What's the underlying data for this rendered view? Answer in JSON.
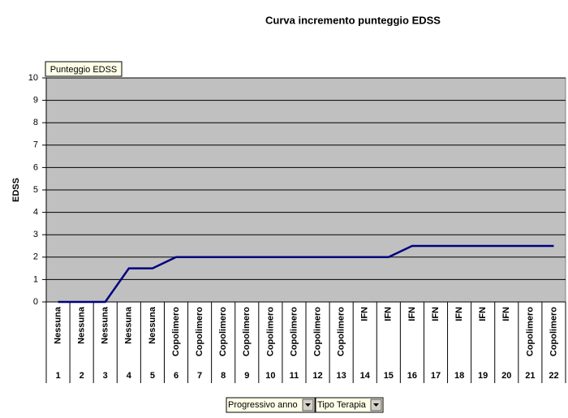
{
  "chart_data": {
    "type": "line",
    "title": "Curva incremento punteggio EDSS",
    "y_label": "EDSS",
    "data_field": "Punteggio EDSS",
    "row_fields": [
      "Progressivo anno",
      "Tipo Terapia"
    ],
    "categories": [
      "1",
      "2",
      "3",
      "4",
      "5",
      "6",
      "7",
      "8",
      "9",
      "10",
      "11",
      "12",
      "13",
      "14",
      "15",
      "16",
      "17",
      "18",
      "19",
      "20",
      "21",
      "22"
    ],
    "category_groups": [
      "Nessuna",
      "Nessuna",
      "Nessuna",
      "Nessuna",
      "Nessuna",
      "Copolimero",
      "Copolimero",
      "Copolimero",
      "Copolimero",
      "Copolimero",
      "Copolimero",
      "Copolimero",
      "Copolimero",
      "IFN",
      "IFN",
      "IFN",
      "IFN",
      "IFN",
      "IFN",
      "IFN",
      "Copolimero",
      "Copolimero"
    ],
    "values": [
      0,
      0,
      0,
      1.5,
      1.5,
      2,
      2,
      2,
      2,
      2,
      2,
      2,
      2,
      2,
      2,
      2.5,
      2.5,
      2.5,
      2.5,
      2.5,
      2.5,
      2.5
    ],
    "color": "#000080",
    "plot_background": "#c0c0c0",
    "ylim": [
      0,
      10
    ],
    "yticks": [
      0,
      1,
      2,
      3,
      4,
      5,
      6,
      7,
      8,
      9,
      10
    ],
    "grid": true
  }
}
